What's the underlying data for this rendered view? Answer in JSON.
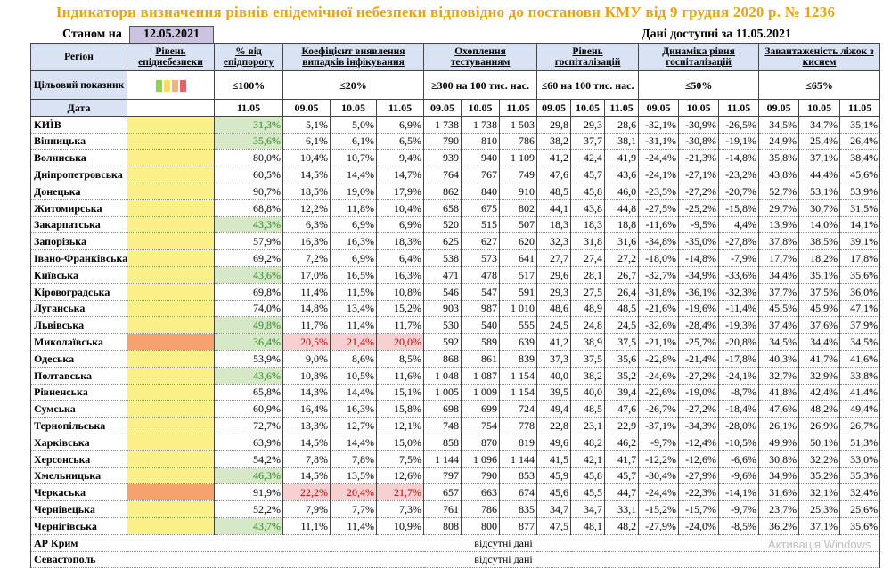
{
  "title": "Індикатори визначення рівнів епідемічної небезпеки відповідно до постанови КМУ від 9 грудня 2020 р. № 1236",
  "as_of_label": "Станом на",
  "as_of_date": "12.05.2021",
  "data_available": "Дані доступні за 11.05.2021",
  "headers": {
    "region": "Регіон",
    "level": "Рівень епіднебезпеки",
    "pct_threshold": "% від епідпорогу",
    "detection": "Коефіцієнт виявлення випадків інфікування",
    "testing": "Охоплення тестуванням",
    "hosp": "Рівень госпіталізацій",
    "hosp_dyn": "Динаміка рівня госпіталізацій",
    "oxygen": "Завантаженість ліжок з киснем"
  },
  "target": {
    "label": "Цільовий показник",
    "swatches": [
      "#92d050",
      "#ffd966",
      "#f4b183",
      "#e06666"
    ],
    "pct_threshold": "≤100%",
    "detection": "≤20%",
    "testing": "≥300 на 100 тис. нас.",
    "hosp": "≤60 на 100 тис. нас.",
    "hosp_dyn": "≤50%",
    "oxygen": "≤65%"
  },
  "dates_label": "Дата",
  "dates": {
    "pct": "11.05",
    "d1": "09.05",
    "d2": "10.05",
    "d3": "11.05"
  },
  "rows": [
    {
      "region": "КИЇВ",
      "level": "yellow",
      "pct": "31,3%",
      "pct_c": "g",
      "det": [
        "5,1%",
        "5,0%",
        "6,9%"
      ],
      "det_c": [
        "",
        "",
        ""
      ],
      "test": [
        "1 738",
        "1 738",
        "1 503"
      ],
      "hosp": [
        "29,8",
        "29,3",
        "28,6"
      ],
      "dyn": [
        "-32,1%",
        "-30,9%",
        "-26,5%"
      ],
      "oxy": [
        "34,5%",
        "34,7%",
        "35,1%"
      ]
    },
    {
      "region": "Вінницька",
      "level": "yellow",
      "pct": "35,6%",
      "pct_c": "g",
      "det": [
        "6,1%",
        "6,1%",
        "6,5%"
      ],
      "det_c": [
        "",
        "",
        ""
      ],
      "test": [
        "790",
        "810",
        "786"
      ],
      "hosp": [
        "38,2",
        "37,7",
        "38,1"
      ],
      "dyn": [
        "-31,1%",
        "-30,8%",
        "-19,1%"
      ],
      "oxy": [
        "24,9%",
        "25,4%",
        "26,4%"
      ]
    },
    {
      "region": "Волинська",
      "level": "yellow",
      "pct": "80,0%",
      "pct_c": "",
      "det": [
        "10,4%",
        "10,7%",
        "9,4%"
      ],
      "det_c": [
        "",
        "",
        ""
      ],
      "test": [
        "939",
        "940",
        "1 109"
      ],
      "hosp": [
        "41,2",
        "42,4",
        "41,9"
      ],
      "dyn": [
        "-24,4%",
        "-21,3%",
        "-14,8%"
      ],
      "oxy": [
        "35,8%",
        "37,1%",
        "38,4%"
      ]
    },
    {
      "region": "Дніпропетровська",
      "level": "yellow",
      "pct": "60,5%",
      "pct_c": "",
      "det": [
        "14,5%",
        "14,4%",
        "14,7%"
      ],
      "det_c": [
        "",
        "",
        ""
      ],
      "test": [
        "764",
        "767",
        "749"
      ],
      "hosp": [
        "47,6",
        "45,7",
        "43,6"
      ],
      "dyn": [
        "-24,1%",
        "-27,1%",
        "-23,2%"
      ],
      "oxy": [
        "43,8%",
        "44,4%",
        "45,6%"
      ]
    },
    {
      "region": "Донецька",
      "level": "yellow",
      "pct": "90,7%",
      "pct_c": "",
      "det": [
        "18,5%",
        "19,0%",
        "17,9%"
      ],
      "det_c": [
        "",
        "",
        ""
      ],
      "test": [
        "862",
        "840",
        "910"
      ],
      "hosp": [
        "48,5",
        "45,8",
        "46,0"
      ],
      "dyn": [
        "-23,5%",
        "-27,2%",
        "-20,7%"
      ],
      "oxy": [
        "52,7%",
        "53,1%",
        "53,9%"
      ]
    },
    {
      "region": "Житомирська",
      "level": "yellow",
      "pct": "68,8%",
      "pct_c": "",
      "det": [
        "12,2%",
        "11,8%",
        "10,4%"
      ],
      "det_c": [
        "",
        "",
        ""
      ],
      "test": [
        "658",
        "675",
        "802"
      ],
      "hosp": [
        "44,1",
        "43,8",
        "44,8"
      ],
      "dyn": [
        "-27,5%",
        "-25,2%",
        "-15,8%"
      ],
      "oxy": [
        "29,7%",
        "30,7%",
        "31,5%"
      ]
    },
    {
      "region": "Закарпатська",
      "level": "yellow",
      "pct": "43,3%",
      "pct_c": "g",
      "det": [
        "6,3%",
        "6,9%",
        "6,9%"
      ],
      "det_c": [
        "",
        "",
        ""
      ],
      "test": [
        "520",
        "515",
        "507"
      ],
      "hosp": [
        "18,3",
        "18,3",
        "18,8"
      ],
      "dyn": [
        "-11,6%",
        "-9,5%",
        "4,4%"
      ],
      "oxy": [
        "13,9%",
        "14,0%",
        "14,1%"
      ]
    },
    {
      "region": "Запорізька",
      "level": "yellow",
      "pct": "57,9%",
      "pct_c": "",
      "det": [
        "16,3%",
        "16,3%",
        "18,3%"
      ],
      "det_c": [
        "",
        "",
        ""
      ],
      "test": [
        "625",
        "627",
        "620"
      ],
      "hosp": [
        "32,3",
        "31,8",
        "31,6"
      ],
      "dyn": [
        "-34,8%",
        "-35,0%",
        "-27,8%"
      ],
      "oxy": [
        "37,8%",
        "38,5%",
        "39,1%"
      ]
    },
    {
      "region": "Івано-Франківська",
      "level": "yellow",
      "pct": "69,2%",
      "pct_c": "",
      "det": [
        "7,2%",
        "6,9%",
        "6,4%"
      ],
      "det_c": [
        "",
        "",
        ""
      ],
      "test": [
        "538",
        "573",
        "641"
      ],
      "hosp": [
        "27,7",
        "27,4",
        "27,2"
      ],
      "dyn": [
        "-18,0%",
        "-14,8%",
        "-7,9%"
      ],
      "oxy": [
        "17,7%",
        "18,2%",
        "17,8%"
      ]
    },
    {
      "region": "Київська",
      "level": "yellow",
      "pct": "43,6%",
      "pct_c": "g",
      "det": [
        "17,0%",
        "16,5%",
        "16,3%"
      ],
      "det_c": [
        "",
        "",
        ""
      ],
      "test": [
        "471",
        "478",
        "517"
      ],
      "hosp": [
        "29,6",
        "28,1",
        "26,7"
      ],
      "dyn": [
        "-32,7%",
        "-34,9%",
        "-33,6%"
      ],
      "oxy": [
        "34,4%",
        "35,1%",
        "35,6%"
      ]
    },
    {
      "region": "Кіровоградська",
      "level": "yellow",
      "pct": "69,8%",
      "pct_c": "",
      "det": [
        "11,4%",
        "11,5%",
        "10,8%"
      ],
      "det_c": [
        "",
        "",
        ""
      ],
      "test": [
        "546",
        "547",
        "591"
      ],
      "hosp": [
        "29,3",
        "27,5",
        "26,4"
      ],
      "dyn": [
        "-31,8%",
        "-36,1%",
        "-32,3%"
      ],
      "oxy": [
        "37,7%",
        "37,5%",
        "36,0%"
      ]
    },
    {
      "region": "Луганська",
      "level": "yellow",
      "pct": "74,0%",
      "pct_c": "",
      "det": [
        "14,8%",
        "13,4%",
        "15,2%"
      ],
      "det_c": [
        "",
        "",
        ""
      ],
      "test": [
        "903",
        "987",
        "1 010"
      ],
      "hosp": [
        "48,6",
        "48,9",
        "48,5"
      ],
      "dyn": [
        "-21,6%",
        "-19,6%",
        "-11,4%"
      ],
      "oxy": [
        "45,5%",
        "45,9%",
        "47,1%"
      ]
    },
    {
      "region": "Львівська",
      "level": "yellow",
      "pct": "49,8%",
      "pct_c": "g",
      "det": [
        "11,7%",
        "11,4%",
        "11,7%"
      ],
      "det_c": [
        "",
        "",
        ""
      ],
      "test": [
        "530",
        "540",
        "555"
      ],
      "hosp": [
        "24,5",
        "24,8",
        "24,5"
      ],
      "dyn": [
        "-32,6%",
        "-28,4%",
        "-19,3%"
      ],
      "oxy": [
        "37,4%",
        "37,6%",
        "37,9%"
      ]
    },
    {
      "region": "Миколаївська",
      "level": "orange",
      "pct": "36,4%",
      "pct_c": "g",
      "det": [
        "20,5%",
        "21,4%",
        "20,0%"
      ],
      "det_c": [
        "r",
        "r",
        "r"
      ],
      "test": [
        "592",
        "589",
        "639"
      ],
      "hosp": [
        "41,2",
        "38,9",
        "37,5"
      ],
      "dyn": [
        "-21,1%",
        "-25,7%",
        "-20,8%"
      ],
      "oxy": [
        "34,5%",
        "34,4%",
        "34,5%"
      ]
    },
    {
      "region": "Одеська",
      "level": "yellow",
      "pct": "53,9%",
      "pct_c": "",
      "det": [
        "9,0%",
        "8,6%",
        "8,5%"
      ],
      "det_c": [
        "",
        "",
        ""
      ],
      "test": [
        "868",
        "861",
        "839"
      ],
      "hosp": [
        "37,3",
        "37,5",
        "35,6"
      ],
      "dyn": [
        "-22,8%",
        "-21,4%",
        "-17,8%"
      ],
      "oxy": [
        "40,3%",
        "41,7%",
        "41,6%"
      ]
    },
    {
      "region": "Полтавська",
      "level": "yellow",
      "pct": "43,6%",
      "pct_c": "g",
      "det": [
        "10,8%",
        "10,5%",
        "11,6%"
      ],
      "det_c": [
        "",
        "",
        ""
      ],
      "test": [
        "1 048",
        "1 087",
        "1 154"
      ],
      "hosp": [
        "40,0",
        "38,2",
        "35,2"
      ],
      "dyn": [
        "-24,6%",
        "-27,2%",
        "-24,1%"
      ],
      "oxy": [
        "32,7%",
        "32,9%",
        "33,8%"
      ]
    },
    {
      "region": "Рівненська",
      "level": "yellow",
      "pct": "65,8%",
      "pct_c": "",
      "det": [
        "14,3%",
        "14,4%",
        "15,1%"
      ],
      "det_c": [
        "",
        "",
        ""
      ],
      "test": [
        "1 005",
        "1 009",
        "1 154"
      ],
      "hosp": [
        "39,5",
        "40,0",
        "39,4"
      ],
      "dyn": [
        "-22,6%",
        "-19,0%",
        "-8,7%"
      ],
      "oxy": [
        "41,8%",
        "42,4%",
        "41,4%"
      ]
    },
    {
      "region": "Сумська",
      "level": "yellow",
      "pct": "60,9%",
      "pct_c": "",
      "det": [
        "16,4%",
        "16,3%",
        "15,8%"
      ],
      "det_c": [
        "",
        "",
        ""
      ],
      "test": [
        "698",
        "699",
        "724"
      ],
      "hosp": [
        "49,4",
        "48,5",
        "47,6"
      ],
      "dyn": [
        "-26,7%",
        "-27,2%",
        "-18,4%"
      ],
      "oxy": [
        "47,6%",
        "48,2%",
        "49,4%"
      ]
    },
    {
      "region": "Тернопільська",
      "level": "yellow",
      "pct": "72,7%",
      "pct_c": "",
      "det": [
        "13,3%",
        "12,7%",
        "12,1%"
      ],
      "det_c": [
        "",
        "",
        ""
      ],
      "test": [
        "748",
        "754",
        "778"
      ],
      "hosp": [
        "22,8",
        "23,1",
        "22,9"
      ],
      "dyn": [
        "-37,1%",
        "-34,3%",
        "-28,0%"
      ],
      "oxy": [
        "26,1%",
        "26,9%",
        "26,7%"
      ]
    },
    {
      "region": "Харківська",
      "level": "yellow",
      "pct": "63,9%",
      "pct_c": "",
      "det": [
        "14,5%",
        "14,4%",
        "15,0%"
      ],
      "det_c": [
        "",
        "",
        ""
      ],
      "test": [
        "858",
        "870",
        "819"
      ],
      "hosp": [
        "49,6",
        "48,2",
        "46,2"
      ],
      "dyn": [
        "-9,7%",
        "-12,4%",
        "-10,5%"
      ],
      "oxy": [
        "49,9%",
        "50,1%",
        "51,3%"
      ]
    },
    {
      "region": "Херсонська",
      "level": "yellow",
      "pct": "54,2%",
      "pct_c": "",
      "det": [
        "7,8%",
        "7,8%",
        "7,5%"
      ],
      "det_c": [
        "",
        "",
        ""
      ],
      "test": [
        "1 144",
        "1 096",
        "1 144"
      ],
      "hosp": [
        "41,5",
        "42,1",
        "41,7"
      ],
      "dyn": [
        "-12,2%",
        "-12,6%",
        "-6,6%"
      ],
      "oxy": [
        "30,8%",
        "32,2%",
        "33,0%"
      ]
    },
    {
      "region": "Хмельницька",
      "level": "yellow",
      "pct": "46,3%",
      "pct_c": "g",
      "det": [
        "14,5%",
        "13,5%",
        "12,6%"
      ],
      "det_c": [
        "",
        "",
        ""
      ],
      "test": [
        "797",
        "790",
        "853"
      ],
      "hosp": [
        "45,9",
        "45,8",
        "45,7"
      ],
      "dyn": [
        "-30,4%",
        "-27,9%",
        "-9,6%"
      ],
      "oxy": [
        "34,9%",
        "35,2%",
        "35,3%"
      ]
    },
    {
      "region": "Черкаська",
      "level": "orange",
      "pct": "91,9%",
      "pct_c": "",
      "det": [
        "22,2%",
        "20,4%",
        "21,7%"
      ],
      "det_c": [
        "r",
        "r",
        "r"
      ],
      "test": [
        "657",
        "663",
        "674"
      ],
      "hosp": [
        "45,6",
        "45,5",
        "44,7"
      ],
      "dyn": [
        "-24,4%",
        "-22,3%",
        "-14,1%"
      ],
      "oxy": [
        "31,6%",
        "32,1%",
        "32,4%"
      ]
    },
    {
      "region": "Чернівецька",
      "level": "yellow",
      "pct": "52,2%",
      "pct_c": "",
      "det": [
        "7,9%",
        "7,7%",
        "7,3%"
      ],
      "det_c": [
        "",
        "",
        ""
      ],
      "test": [
        "761",
        "786",
        "835"
      ],
      "hosp": [
        "34,7",
        "34,7",
        "33,1"
      ],
      "dyn": [
        "-15,2%",
        "-15,7%",
        "-9,7%"
      ],
      "oxy": [
        "23,7%",
        "25,3%",
        "25,6%"
      ]
    },
    {
      "region": "Чернігівська",
      "level": "yellow",
      "pct": "43,7%",
      "pct_c": "g",
      "det": [
        "11,1%",
        "11,4%",
        "10,9%"
      ],
      "det_c": [
        "",
        "",
        ""
      ],
      "test": [
        "808",
        "800",
        "877"
      ],
      "hosp": [
        "47,5",
        "48,1",
        "48,2"
      ],
      "dyn": [
        "-27,9%",
        "-24,0%",
        "-8,5%"
      ],
      "oxy": [
        "36,2%",
        "37,1%",
        "35,6%"
      ]
    }
  ],
  "no_data_rows": [
    {
      "region": "АР Крим",
      "text": "відсутні дані"
    },
    {
      "region": "Севастополь",
      "text": "відсутні дані"
    }
  ],
  "watermark": "Активація Windows"
}
